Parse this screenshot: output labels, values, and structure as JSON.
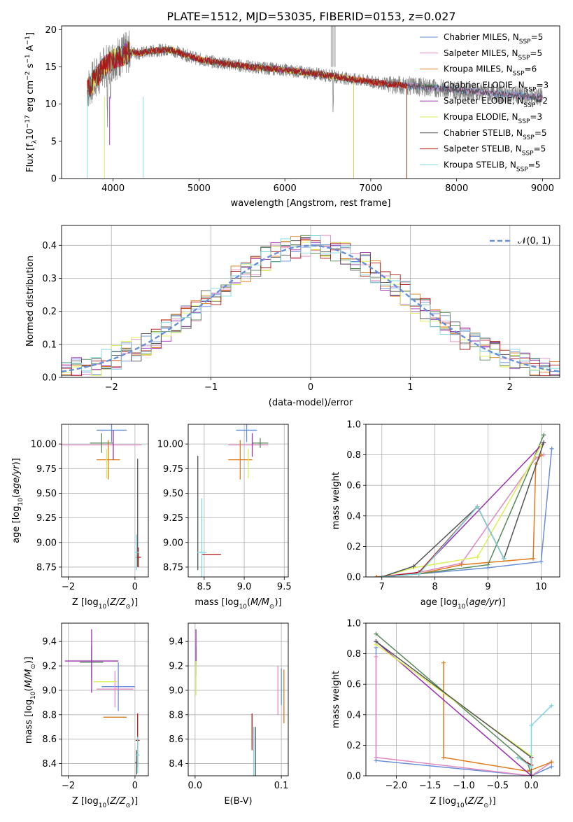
{
  "title": "PLATE=1512, MJD=53035, FIBERID=0153, z=0.027",
  "colors": {
    "chabrier_miles": "#6a8fd9",
    "salpeter_miles": "#e28bc0",
    "kroupa_miles": "#e07b1a",
    "chabrier_elodie": "#5a8a5a",
    "salpeter_elodie": "#9a2fb0",
    "kroupa_elodie": "#d9ef55",
    "chabrier_stelib": "#555555",
    "salpeter_stelib": "#b01818",
    "kroupa_stelib": "#7fd6df",
    "gaussian": "#6a8fd9",
    "grid": "#b0b0b0",
    "spectrum_data": "#808080"
  },
  "chart_data": [
    {
      "id": "spectrum",
      "type": "line",
      "xlabel": "wavelength [Angstrom, rest frame]",
      "ylabel": "Flux [f",
      "ylabel_sub": "λ",
      "ylabel_rest": "10",
      "ylabel_exp": "−17",
      "ylabel_units": " erg cm",
      "ylabel_exp2": "−2",
      "ylabel_s": " s",
      "ylabel_exp3": "−1",
      "ylabel_A": " A",
      "ylabel_exp4": "−1",
      "ylabel_end": "]",
      "xlim": [
        3400,
        9200
      ],
      "ylim": [
        0,
        20.5
      ],
      "xticks": [
        "4000",
        "5000",
        "6000",
        "7000",
        "8000",
        "9000"
      ],
      "xtick_values": [
        4000,
        5000,
        6000,
        7000,
        8000,
        9000
      ],
      "yticks": [
        "0",
        "5",
        "10",
        "15",
        "20"
      ],
      "ytick_values": [
        0,
        5,
        10,
        15,
        20
      ],
      "legend_position": "top-right",
      "legend": [
        {
          "pre": "Chabrier MILES, N",
          "sub": "SSP",
          "post": "=5",
          "color_key": "chabrier_miles"
        },
        {
          "pre": "Salpeter MILES, N",
          "sub": "SSP",
          "post": "=5",
          "color_key": "salpeter_miles"
        },
        {
          "pre": "Kroupa MILES, N",
          "sub": "SSP",
          "post": "=6",
          "color_key": "kroupa_miles"
        },
        {
          "pre": "Chabrier ELODIE, N",
          "sub": "SSP",
          "post": "=3",
          "color_key": "chabrier_elodie"
        },
        {
          "pre": "Salpeter ELODIE, N",
          "sub": "SSP",
          "post": "=2",
          "color_key": "salpeter_elodie"
        },
        {
          "pre": "Kroupa ELODIE, N",
          "sub": "SSP",
          "post": "=3",
          "color_key": "kroupa_elodie"
        },
        {
          "pre": "Chabrier STELIB, N",
          "sub": "SSP",
          "post": "=5",
          "color_key": "chabrier_stelib"
        },
        {
          "pre": "Salpeter STELIB, N",
          "sub": "SSP",
          "post": "=5",
          "color_key": "salpeter_stelib"
        },
        {
          "pre": "Kroupa STELIB, N",
          "sub": "SSP",
          "post": "=5",
          "color_key": "kroupa_stelib"
        }
      ],
      "continuum_x": [
        3700,
        3800,
        3900,
        4000,
        4100,
        4200,
        4300,
        4400,
        4500,
        4600,
        4700,
        4800,
        4900,
        5000,
        5200,
        5400,
        5600,
        5800,
        6000,
        6200,
        6400,
        6600,
        6800,
        7000,
        7200,
        7400,
        7600,
        7800,
        8000,
        8200,
        8400,
        8600,
        8800,
        9000
      ],
      "continuum_y": [
        12.0,
        13.5,
        15.0,
        16.0,
        16.5,
        17.0,
        16.8,
        17.0,
        17.2,
        17.3,
        17.2,
        16.8,
        16.4,
        16.0,
        15.6,
        15.3,
        15.0,
        14.8,
        14.6,
        14.3,
        14.0,
        13.7,
        13.3,
        13.0,
        12.7,
        12.5,
        12.3,
        12.1,
        11.9,
        11.7,
        11.5,
        11.3,
        11.1,
        10.9
      ]
    },
    {
      "id": "residuals",
      "type": "line",
      "xlabel": "(data-model)/error",
      "ylabel": "Normed distribution",
      "xlim": [
        -2.5,
        2.5
      ],
      "ylim": [
        0,
        0.46
      ],
      "xticks": [
        "−2",
        "−1",
        "0",
        "1",
        "2"
      ],
      "xtick_values": [
        -2,
        -1,
        0,
        1,
        2
      ],
      "yticks": [
        "0.0",
        "0.1",
        "0.2",
        "0.3",
        "0.4"
      ],
      "ytick_values": [
        0,
        0.1,
        0.2,
        0.3,
        0.4
      ],
      "legend_position": "top-right",
      "legend_label": "𝒩(0, 1)",
      "grid": true
    },
    {
      "id": "age_vs_Z",
      "type": "scatter",
      "xlabel": "Z [log",
      "xlabel_sub": "10",
      "xlabel_rest": "(Z/Z",
      "xlabel_sun": "⊙",
      "xlabel_end": ")]",
      "ylabel": "age  [log",
      "ylabel_sub": "10",
      "ylabel_rest": "(age/yr)]",
      "xlim": [
        -2.2,
        0.4
      ],
      "ylim": [
        8.65,
        10.2
      ],
      "xticks": [
        "−2",
        "0"
      ],
      "xtick_values": [
        -2,
        0
      ],
      "yticks": [
        "8.75",
        "9.00",
        "9.25",
        "9.50",
        "9.75",
        "10.00"
      ],
      "ytick_values": [
        8.75,
        9.0,
        9.25,
        9.5,
        9.75,
        10.0
      ],
      "points": [
        {
          "c": "chabrier_miles",
          "x": -0.7,
          "y": 10.14,
          "xe": 0.45,
          "ye": 0.12
        },
        {
          "c": "salpeter_miles",
          "x": -1.0,
          "y": 9.99,
          "xe": 1.2,
          "ye": 0.0
        },
        {
          "c": "kroupa_miles",
          "x": -0.8,
          "y": 9.84,
          "xe": 0.35,
          "ye": 0.2
        },
        {
          "c": "chabrier_elodie",
          "x": -1.0,
          "y": 10.01,
          "xe": 0.35,
          "ye": 0.1
        },
        {
          "c": "salpeter_elodie",
          "x": -0.65,
          "y": 9.99,
          "xe": 0.0,
          "ye": 0.15
        },
        {
          "c": "kroupa_elodie",
          "x": -0.85,
          "y": 9.8,
          "xe": 0.0,
          "ye": 0.15
        },
        {
          "c": "chabrier_stelib",
          "x": 0.08,
          "y": 9.3,
          "xe": 0.0,
          "ye": 0.55
        },
        {
          "c": "salpeter_stelib",
          "x": 0.1,
          "y": 8.85,
          "xe": 0.08,
          "ye": 0.1
        },
        {
          "c": "kroupa_stelib",
          "x": 0.05,
          "y": 8.9,
          "xe": 0.06,
          "ye": 0.18
        }
      ]
    },
    {
      "id": "age_vs_mass",
      "type": "scatter",
      "xlabel": "mass [log",
      "xlabel_sub": "10",
      "xlabel_rest": "(M/M",
      "xlabel_sun": "⊙",
      "xlabel_end": ")]",
      "xlim": [
        8.3,
        9.55
      ],
      "ylim": [
        8.65,
        10.2
      ],
      "xticks": [
        "8.5",
        "9.0",
        "9.5"
      ],
      "xtick_values": [
        8.5,
        9.0,
        9.5
      ],
      "yticks": [
        "8.75",
        "9.00",
        "9.25",
        "9.50",
        "9.75",
        "10.00"
      ],
      "ytick_values": [
        8.75,
        9.0,
        9.25,
        9.5,
        9.75,
        10.0
      ],
      "points": [
        {
          "c": "chabrier_miles",
          "x": 9.03,
          "y": 10.14,
          "xe": 0.13,
          "ye": 0.12
        },
        {
          "c": "salpeter_miles",
          "x": 9.05,
          "y": 9.99,
          "xe": 0.25,
          "ye": 0.0
        },
        {
          "c": "kroupa_miles",
          "x": 8.95,
          "y": 9.84,
          "xe": 0.15,
          "ye": 0.2
        },
        {
          "c": "chabrier_elodie",
          "x": 9.2,
          "y": 10.01,
          "xe": 0.1,
          "ye": 0.05
        },
        {
          "c": "salpeter_elodie",
          "x": 9.1,
          "y": 9.99,
          "xe": 0.0,
          "ye": 0.12
        },
        {
          "c": "kroupa_elodie",
          "x": 9.05,
          "y": 9.8,
          "xe": 0.0,
          "ye": 0.15
        },
        {
          "c": "chabrier_stelib",
          "x": 8.42,
          "y": 9.3,
          "xe": 0.0,
          "ye": 0.58
        },
        {
          "c": "salpeter_stelib",
          "x": 8.59,
          "y": 8.88,
          "xe": 0.12,
          "ye": 0.0
        },
        {
          "c": "kroupa_stelib",
          "x": 8.47,
          "y": 8.9,
          "xe": 0.06,
          "ye": 0.55
        }
      ]
    },
    {
      "id": "weight_vs_age",
      "type": "line",
      "xlabel": "age  [log",
      "xlabel_sub": "10",
      "xlabel_rest": "(age/yr)]",
      "ylabel": "mass weight",
      "xlim": [
        6.7,
        10.35
      ],
      "ylim": [
        0,
        1.0
      ],
      "xticks": [
        "7",
        "8",
        "9",
        "10"
      ],
      "xtick_values": [
        7,
        8,
        9,
        10
      ],
      "yticks": [
        "0.0",
        "0.2",
        "0.4",
        "0.6",
        "0.8",
        "1.0"
      ],
      "ytick_values": [
        0,
        0.2,
        0.4,
        0.6,
        0.8,
        1.0
      ],
      "series": [
        {
          "c": "chabrier_miles",
          "x": [
            6.9,
            7.7,
            9.0,
            10.0,
            10.2
          ],
          "y": [
            0.0,
            0.02,
            0.06,
            0.1,
            0.84
          ]
        },
        {
          "c": "salpeter_miles",
          "x": [
            6.9,
            7.7,
            8.5,
            9.9,
            10.05
          ],
          "y": [
            0.0,
            0.03,
            0.09,
            0.78,
            0.8
          ]
        },
        {
          "c": "kroupa_miles",
          "x": [
            6.9,
            7.7,
            8.5,
            9.85,
            9.9,
            10.0
          ],
          "y": [
            0.0,
            0.02,
            0.08,
            0.12,
            0.74,
            0.8
          ]
        },
        {
          "c": "chabrier_elodie",
          "x": [
            7.0,
            7.7,
            9.0,
            10.05
          ],
          "y": [
            0.0,
            0.02,
            0.08,
            0.93
          ]
        },
        {
          "c": "salpeter_elodie",
          "x": [
            7.0,
            7.7,
            10.05
          ],
          "y": [
            0.0,
            0.03,
            0.88
          ]
        },
        {
          "c": "kroupa_elodie",
          "x": [
            7.0,
            7.6,
            8.8,
            10.0
          ],
          "y": [
            0.0,
            0.06,
            0.13,
            0.86
          ]
        },
        {
          "c": "chabrier_stelib",
          "x": [
            7.0,
            7.6,
            8.8,
            9.3,
            10.05
          ],
          "y": [
            0.0,
            0.07,
            0.46,
            0.12,
            0.88
          ]
        },
        {
          "c": "salpeter_stelib",
          "x": [
            7.0,
            7.7,
            8.8,
            9.3
          ],
          "y": [
            0.0,
            0.03,
            0.46,
            0.12
          ]
        },
        {
          "c": "kroupa_stelib",
          "x": [
            7.0,
            7.7,
            8.8,
            9.3
          ],
          "y": [
            0.0,
            0.02,
            0.46,
            0.12
          ]
        }
      ]
    },
    {
      "id": "mass_vs_Z",
      "type": "scatter",
      "xlabel": "Z [log",
      "xlabel_sub": "10",
      "xlabel_rest": "(Z/Z",
      "xlabel_sun": "⊙",
      "xlabel_end": ")]",
      "ylabel": "mass [log",
      "ylabel_sub": "10",
      "ylabel_rest": "(M/M",
      "ylabel_sun": "⊙",
      "ylabel_end": ")]",
      "xlim": [
        -2.2,
        0.4
      ],
      "ylim": [
        8.3,
        9.55
      ],
      "xticks": [
        "−2",
        "0"
      ],
      "xtick_values": [
        -2,
        0
      ],
      "yticks": [
        "8.4",
        "8.6",
        "8.8",
        "9.0",
        "9.2",
        "9.4"
      ],
      "ytick_values": [
        8.4,
        8.6,
        8.8,
        9.0,
        9.2,
        9.4
      ],
      "points": [
        {
          "c": "chabrier_miles",
          "x": -0.5,
          "y": 9.03,
          "xe": 0.5,
          "ye": 0.2
        },
        {
          "c": "salpeter_miles",
          "x": -0.6,
          "y": 9.01,
          "xe": 0.55,
          "ye": 0.15
        },
        {
          "c": "kroupa_miles",
          "x": -0.6,
          "y": 8.78,
          "xe": 0.35,
          "ye": 0.0
        },
        {
          "c": "chabrier_elodie",
          "x": -1.3,
          "y": 9.23,
          "xe": 0.35,
          "ye": 0.13
        },
        {
          "c": "salpeter_elodie",
          "x": -1.3,
          "y": 9.24,
          "xe": 0.8,
          "ye": 0.26
        },
        {
          "c": "kroupa_elodie",
          "x": -0.9,
          "y": 9.07,
          "xe": 0.35,
          "ye": 0.0
        },
        {
          "c": "chabrier_stelib",
          "x": 0.05,
          "y": 8.41,
          "xe": 0.05,
          "ye": 0.1
        },
        {
          "c": "salpeter_stelib",
          "x": 0.08,
          "y": 8.59,
          "xe": 0.06,
          "ye": 0.22
        },
        {
          "c": "kroupa_stelib",
          "x": 0.08,
          "y": 8.47,
          "xe": 0.06,
          "ye": 0.15
        }
      ]
    },
    {
      "id": "mass_vs_EBV",
      "type": "scatter",
      "xlabel": "E(B-V)",
      "xlim": [
        -0.008,
        0.108
      ],
      "ylim": [
        8.3,
        9.55
      ],
      "xticks": [
        "0.0",
        "0.1"
      ],
      "xtick_values": [
        0.0,
        0.1
      ],
      "yticks": [
        "8.4",
        "8.6",
        "8.8",
        "9.0",
        "9.2",
        "9.4"
      ],
      "ytick_values": [
        8.4,
        8.6,
        8.8,
        9.0,
        9.2,
        9.4
      ],
      "points": [
        {
          "c": "chabrier_miles",
          "x": 0.1,
          "y": 9.03,
          "xe": 0,
          "ye": 0.15
        },
        {
          "c": "salpeter_miles",
          "x": 0.096,
          "y": 9.0,
          "xe": 0,
          "ye": 0.2
        },
        {
          "c": "kroupa_miles",
          "x": 0.103,
          "y": 8.95,
          "xe": 0,
          "ye": 0.22
        },
        {
          "c": "chabrier_elodie",
          "x": 0.001,
          "y": 9.24,
          "xe": 0,
          "ye": 0.12
        },
        {
          "c": "salpeter_elodie",
          "x": 0.001,
          "y": 9.35,
          "xe": 0,
          "ye": 0.15
        },
        {
          "c": "kroupa_elodie",
          "x": 0.001,
          "y": 9.1,
          "xe": 0,
          "ye": 0.14
        },
        {
          "c": "chabrier_stelib",
          "x": 0.07,
          "y": 8.5,
          "xe": 0,
          "ye": 0.2
        },
        {
          "c": "salpeter_stelib",
          "x": 0.066,
          "y": 8.66,
          "xe": 0,
          "ye": 0.15
        },
        {
          "c": "kroupa_stelib",
          "x": 0.068,
          "y": 8.5,
          "xe": 0,
          "ye": 0.2
        }
      ]
    },
    {
      "id": "weight_vs_Z",
      "type": "line",
      "xlabel": "Z [log",
      "xlabel_sub": "10",
      "xlabel_rest": "(Z/Z",
      "xlabel_sun": "⊙",
      "xlabel_end": ")]",
      "ylabel": "mass weight",
      "xlim": [
        -2.45,
        0.42
      ],
      "ylim": [
        0,
        1.0
      ],
      "xticks": [
        "−2.0",
        "−1.5",
        "−1.0",
        "−0.5",
        "0.0"
      ],
      "xtick_values": [
        -2.0,
        -1.5,
        -1.0,
        -0.5,
        0.0
      ],
      "yticks": [
        "0.0",
        "0.2",
        "0.4",
        "0.6",
        "0.8",
        "1.0"
      ],
      "ytick_values": [
        0,
        0.2,
        0.4,
        0.6,
        0.8,
        1.0
      ],
      "series": [
        {
          "c": "chabrier_miles",
          "x": [
            -2.3,
            -2.3,
            0.0,
            0.3
          ],
          "y": [
            0.84,
            0.1,
            0.0,
            0.06
          ]
        },
        {
          "c": "salpeter_miles",
          "x": [
            -2.3,
            -2.3,
            0.0,
            0.3
          ],
          "y": [
            0.78,
            0.12,
            0.0,
            0.09
          ]
        },
        {
          "c": "kroupa_miles",
          "x": [
            -1.3,
            -1.3,
            -0.05,
            0.3
          ],
          "y": [
            0.74,
            0.12,
            0.03,
            0.09
          ]
        },
        {
          "c": "chabrier_elodie",
          "x": [
            -2.3,
            -0.05,
            0.0
          ],
          "y": [
            0.93,
            0.08,
            0.0
          ]
        },
        {
          "c": "salpeter_elodie",
          "x": [
            -2.3,
            0.0
          ],
          "y": [
            0.88,
            0.0
          ]
        },
        {
          "c": "kroupa_elodie",
          "x": [
            -2.3,
            0.0
          ],
          "y": [
            0.86,
            0.13
          ]
        },
        {
          "c": "chabrier_stelib",
          "x": [
            -2.3,
            0.0,
            0.0
          ],
          "y": [
            0.88,
            0.12,
            0.0
          ]
        },
        {
          "c": "salpeter_stelib",
          "x": [
            -0.2,
            0.0,
            0.0
          ],
          "y": [
            0.12,
            0.07,
            0.12
          ]
        },
        {
          "c": "kroupa_stelib",
          "x": [
            -0.2,
            0.0,
            0.0,
            0.3
          ],
          "y": [
            0.12,
            0.06,
            0.33,
            0.46
          ]
        }
      ]
    }
  ]
}
